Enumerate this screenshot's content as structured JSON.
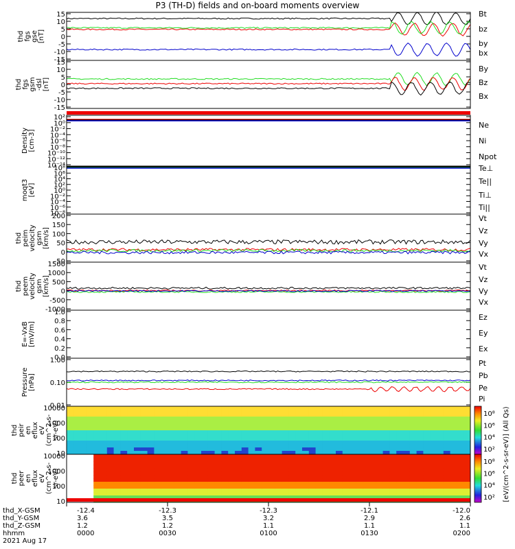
{
  "title": "P3 (TH-D) fields and on-board moments overview",
  "colors": {
    "black": "#000000",
    "red": "#ee0000",
    "green": "#22dd22",
    "blue": "#0000cc"
  },
  "chart_data": [
    {
      "type": "line",
      "ylabel": [
        "thd",
        "fgs",
        "gse",
        "[nT]"
      ],
      "yticks": [
        "15",
        "10",
        "5",
        "0",
        "-5",
        "-10",
        "-15"
      ],
      "ylim": [
        -15,
        16
      ],
      "series": [
        {
          "name": "Bt",
          "color": "black",
          "base": 12
        },
        {
          "name": "bz",
          "color": "red",
          "base": 5
        },
        {
          "name": "by",
          "color": "green",
          "base": 6
        },
        {
          "name": "bx",
          "color": "blue",
          "base": -8
        }
      ]
    },
    {
      "type": "line",
      "ylabel": [
        "thd",
        "fgs",
        "gsm",
        "-dsl",
        "[nT]"
      ],
      "yticks": [
        "15",
        "10",
        "5",
        "0",
        "-5",
        "-10",
        "-15"
      ],
      "ylim": [
        -15,
        16
      ],
      "series": [
        {
          "name": "By",
          "color": "green",
          "base": 4
        },
        {
          "name": "Bz",
          "color": "red",
          "base": 1
        },
        {
          "name": "Bx",
          "color": "black",
          "base": -2
        }
      ]
    },
    {
      "type": "line",
      "ylabel": [
        "Density",
        "[cm-3]"
      ],
      "yticks": [
        "10²",
        "10⁰",
        "10⁻²",
        "10⁻⁴",
        "10⁻⁶",
        "10⁻⁸",
        "10⁻¹⁰",
        "10⁻¹²",
        "10⁻¹⁴"
      ],
      "series": [
        {
          "name": "Ne",
          "color": "red"
        },
        {
          "name": "Ni",
          "color": "black"
        },
        {
          "name": "Npot",
          "color": "blue"
        }
      ]
    },
    {
      "type": "line",
      "ylabel": [
        "moqt3",
        "[eV]"
      ],
      "yticks": [
        "10⁸",
        "10⁶",
        "10⁴",
        "10²",
        "10⁰",
        "10⁻²",
        "10⁻⁴",
        "10⁻⁶",
        "10⁻⁸"
      ],
      "series": [
        {
          "name": "Te⊥",
          "color": "red"
        },
        {
          "name": "Te||",
          "color": "black"
        },
        {
          "name": "Ti⊥",
          "color": "red"
        },
        {
          "name": "Ti||",
          "color": "green"
        }
      ]
    },
    {
      "type": "line",
      "ylabel": [
        "thd",
        "peim",
        "velocity",
        "gsm",
        "[km/s]"
      ],
      "yticks": [
        "200",
        "150",
        "100",
        "50",
        "0",
        "-50"
      ],
      "ylim": [
        -50,
        200
      ],
      "series": [
        {
          "name": "Vt",
          "color": "black",
          "base": 55
        },
        {
          "name": "Vz",
          "color": "red",
          "base": 15
        },
        {
          "name": "Vy",
          "color": "green",
          "base": 10
        },
        {
          "name": "Vx",
          "color": "blue",
          "base": 0
        }
      ]
    },
    {
      "type": "line",
      "ylabel": [
        "thd",
        "peem",
        "velocity",
        "gsm",
        "[km/s]"
      ],
      "yticks": [
        "1500",
        "1000",
        "500",
        "0",
        "-500",
        "-1000"
      ],
      "ylim": [
        -1000,
        1500
      ],
      "series": [
        {
          "name": "Vt",
          "color": "black",
          "base": 150
        },
        {
          "name": "Vz",
          "color": "red",
          "base": 20
        },
        {
          "name": "Vy",
          "color": "green",
          "base": -50
        },
        {
          "name": "Vx",
          "color": "blue",
          "base": 0
        }
      ]
    },
    {
      "type": "line",
      "ylabel": [
        "E=-VxB",
        "[mV/m]"
      ],
      "yticks": [
        "1.0",
        "0.8",
        "0.6",
        "0.4",
        "0.2",
        "0.0"
      ],
      "ylim": [
        0,
        1
      ],
      "series": [
        {
          "name": "Ez",
          "color": "red"
        },
        {
          "name": "Ey",
          "color": "green"
        },
        {
          "name": "Ex",
          "color": "blue"
        }
      ]
    },
    {
      "type": "line",
      "ylabel": [
        "Pressure",
        "[nPa]"
      ],
      "yticks": [
        "1.00",
        "0.10",
        "0.01"
      ],
      "series": [
        {
          "name": "Pt",
          "color": "black",
          "base": 0.3
        },
        {
          "name": "Pb",
          "color": "red",
          "base": 0.05
        },
        {
          "name": "Pe",
          "color": "green",
          "base": 0.1
        },
        {
          "name": "Pi",
          "color": "blue",
          "base": 0.12
        }
      ]
    },
    {
      "type": "heatmap",
      "ylabel": [
        "thd",
        "peir",
        "en",
        "eflux",
        "eV",
        "(cm^2-s-",
        "sr-eV)"
      ],
      "yticks": [
        "10000",
        "1000",
        "100",
        "10"
      ]
    },
    {
      "type": "heatmap",
      "ylabel": [
        "thd",
        "peer",
        "en",
        "eflux",
        "eV",
        "(cm^2-s-",
        "sr-eV)"
      ],
      "yticks": [
        "10000",
        "1000",
        "100",
        "10"
      ]
    }
  ],
  "colorbar": {
    "label": "[eV/(cm^2-s-sr-eV)] (All Qs)",
    "ticks": [
      "10⁸",
      "10⁶",
      "10⁴",
      "10²"
    ]
  },
  "xaxis": {
    "row_labels": [
      "thd_X-GSM",
      "thd_Y-GSM",
      "thd_Z-GSM",
      "hhmm",
      "2021 Aug 17"
    ],
    "columns": [
      {
        "x": "-12.4",
        "y": "3.6",
        "z": "1.2",
        "t": "0000"
      },
      {
        "x": "-12.3",
        "y": "3.5",
        "z": "1.2",
        "t": "0030"
      },
      {
        "x": "-12.3",
        "y": "3.2",
        "z": "1.1",
        "t": "0100"
      },
      {
        "x": "-12.1",
        "y": "2.9",
        "z": "1.1",
        "t": "0130"
      },
      {
        "x": "-12.0",
        "y": "2.6",
        "z": "1.1",
        "t": "0200"
      }
    ]
  }
}
